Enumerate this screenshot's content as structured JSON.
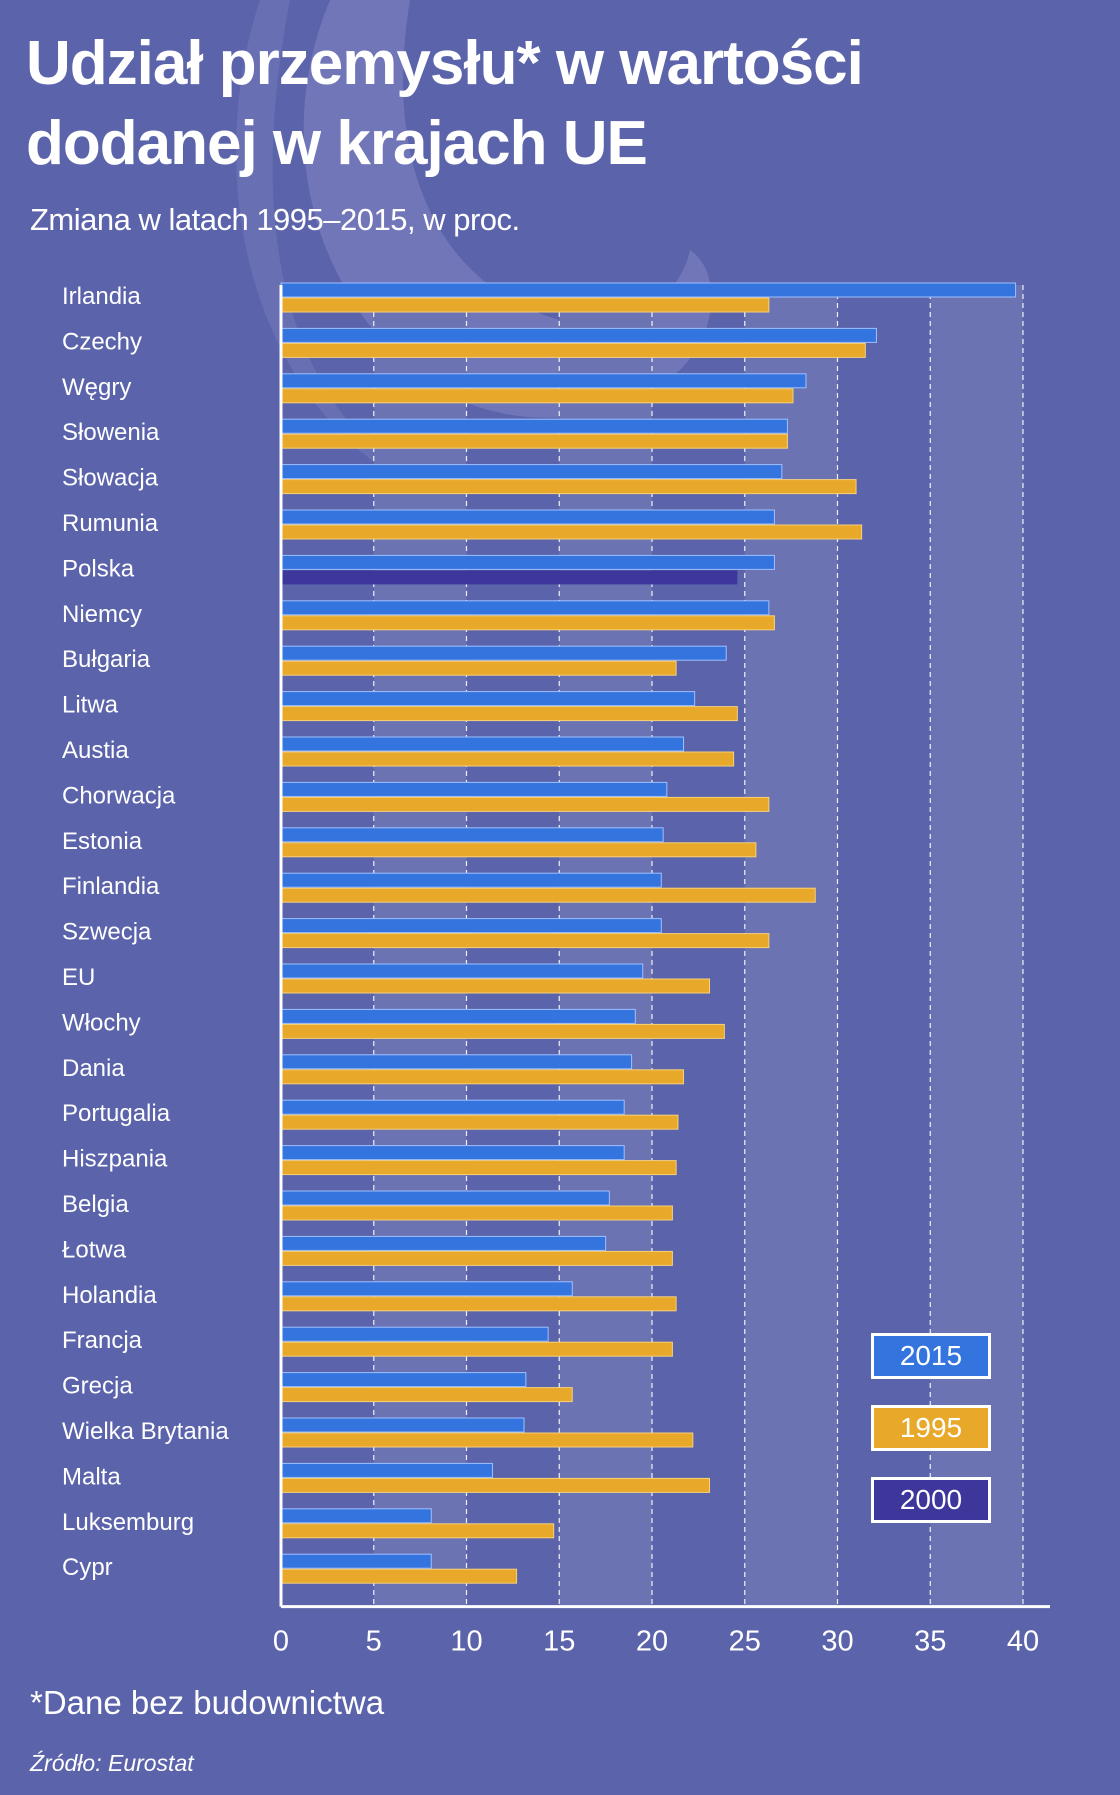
{
  "title_line1": "Udział przemysłu* w wartości",
  "title_line2": "dodanej w krajach UE",
  "subtitle": "Zmiana w latach 1995–2015, w proc.",
  "footnote": "*Dane bez budownictwa",
  "source": "Źródło: Eurostat",
  "colors": {
    "background": "#5b63ab",
    "band": "#6c73b2",
    "s2015": "#3474de",
    "s1995": "#e8a82a",
    "s2000": "#3d379c"
  },
  "legend": [
    {
      "label": "2015",
      "color": "#3474de"
    },
    {
      "label": "1995",
      "color": "#e8a82a"
    },
    {
      "label": "2000",
      "color": "#3d379c"
    }
  ],
  "chart_data": {
    "type": "bar",
    "orientation": "horizontal",
    "categories": [
      "Irlandia",
      "Czechy",
      "Węgry",
      "Słowenia",
      "Słowacja",
      "Rumunia",
      "Polska",
      "Niemcy",
      "Bułgaria",
      "Litwa",
      "Austia",
      "Chorwacja",
      "Estonia",
      "Finlandia",
      "Szwecja",
      "EU",
      "Włochy",
      "Dania",
      "Portugalia",
      "Hiszpania",
      "Belgia",
      "Łotwa",
      "Holandia",
      "Francja",
      "Grecja",
      "Wielka Brytania",
      "Malta",
      "Luksemburg",
      "Cypr"
    ],
    "series": [
      {
        "name": "2015",
        "values": [
          39.6,
          32.1,
          28.3,
          27.3,
          27.0,
          26.6,
          26.6,
          26.3,
          24.0,
          22.3,
          21.7,
          20.8,
          20.6,
          20.5,
          20.5,
          19.5,
          19.1,
          18.9,
          18.5,
          18.5,
          17.7,
          17.5,
          15.7,
          14.4,
          13.2,
          13.1,
          11.4,
          8.1,
          8.1
        ]
      },
      {
        "name": "1995",
        "values": [
          26.3,
          31.5,
          27.6,
          27.3,
          31.0,
          31.3,
          24.6,
          26.6,
          21.3,
          24.6,
          24.4,
          26.3,
          25.6,
          28.8,
          26.3,
          23.1,
          23.9,
          21.7,
          21.4,
          21.3,
          21.1,
          21.1,
          21.3,
          21.1,
          15.7,
          22.2,
          23.1,
          14.7,
          12.7
        ]
      }
    ],
    "series_note_index": 6,
    "series_note": "2000",
    "xlim": [
      0,
      40
    ],
    "xticks": [
      0,
      5,
      10,
      15,
      20,
      25,
      30,
      35,
      40
    ],
    "grid": "vertical-dashed"
  }
}
